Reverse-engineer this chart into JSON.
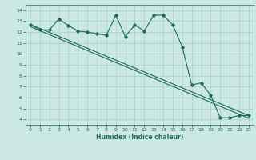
{
  "xlabel": "Humidex (Indice chaleur)",
  "bg_color": "#cce8e4",
  "grid_color": "#aacfcb",
  "line_color": "#1a6b5a",
  "xlim": [
    -0.5,
    23.5
  ],
  "ylim": [
    3.5,
    14.5
  ],
  "xticks": [
    0,
    1,
    2,
    3,
    4,
    5,
    6,
    7,
    8,
    9,
    10,
    11,
    12,
    13,
    14,
    15,
    16,
    17,
    18,
    19,
    20,
    21,
    22,
    23
  ],
  "yticks": [
    4,
    5,
    6,
    7,
    8,
    9,
    10,
    11,
    12,
    13,
    14
  ],
  "series1_x": [
    0,
    1,
    2,
    3,
    4,
    5,
    6,
    7,
    8,
    9,
    10,
    11,
    12,
    13,
    14,
    15,
    16,
    17,
    18,
    19,
    20,
    21,
    22,
    23
  ],
  "series1_y": [
    12.7,
    12.2,
    12.2,
    13.2,
    12.6,
    12.1,
    12.0,
    11.85,
    11.7,
    13.55,
    11.6,
    12.65,
    12.1,
    13.55,
    13.55,
    12.65,
    10.65,
    7.15,
    7.35,
    6.2,
    4.15,
    4.15,
    4.35,
    4.35
  ],
  "series2_x": [
    0,
    23
  ],
  "series2_y": [
    12.7,
    4.35
  ],
  "series3_x": [
    0,
    23
  ],
  "series3_y": [
    12.5,
    4.1
  ]
}
